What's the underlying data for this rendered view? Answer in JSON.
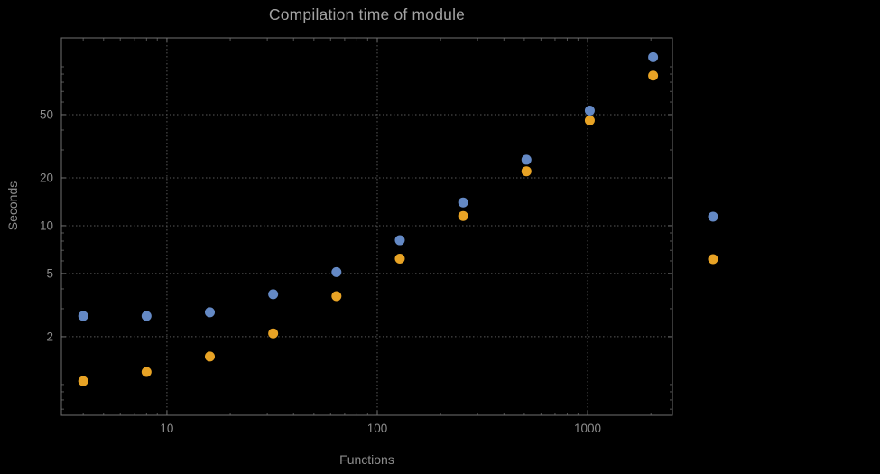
{
  "window": {
    "background": "#000000"
  },
  "chart_data": {
    "type": "scatter",
    "title": "Compilation time of module",
    "xlabel": "Functions",
    "ylabel": "Seconds",
    "x_scale": "log",
    "y_scale": "log",
    "x_range": [
      3.15,
      2530
    ],
    "y_range": [
      0.64,
      152
    ],
    "x_ticks": [
      10,
      100,
      1000
    ],
    "y_ticks": [
      2,
      5,
      10,
      20,
      50
    ],
    "grid": "dotted",
    "legend": {
      "position": "right-outside",
      "labels_visible": false,
      "entries": [
        "series-blue",
        "series-orange"
      ]
    },
    "series": [
      {
        "name": "series-blue",
        "color": "#6489C5",
        "points": [
          [
            4,
            2.7
          ],
          [
            8,
            2.7
          ],
          [
            16,
            2.85
          ],
          [
            32,
            3.7
          ],
          [
            64,
            5.1
          ],
          [
            128,
            8.1
          ],
          [
            256,
            14
          ],
          [
            512,
            26
          ],
          [
            1024,
            53
          ],
          [
            2048,
            115
          ]
        ]
      },
      {
        "name": "series-orange",
        "color": "#E8A325",
        "points": [
          [
            4,
            1.05
          ],
          [
            8,
            1.2
          ],
          [
            16,
            1.5
          ],
          [
            32,
            2.1
          ],
          [
            64,
            3.6
          ],
          [
            128,
            6.2
          ],
          [
            256,
            11.5
          ],
          [
            512,
            22
          ],
          [
            1024,
            46
          ],
          [
            2048,
            88
          ]
        ]
      }
    ],
    "colors": {
      "background": "#000000",
      "frame": "#6f6f6f",
      "grid": "#585858",
      "tick_text": "#8d8d8d",
      "title_text": "#a2a2a2",
      "axis_label_text": "#8d8d8d"
    }
  }
}
